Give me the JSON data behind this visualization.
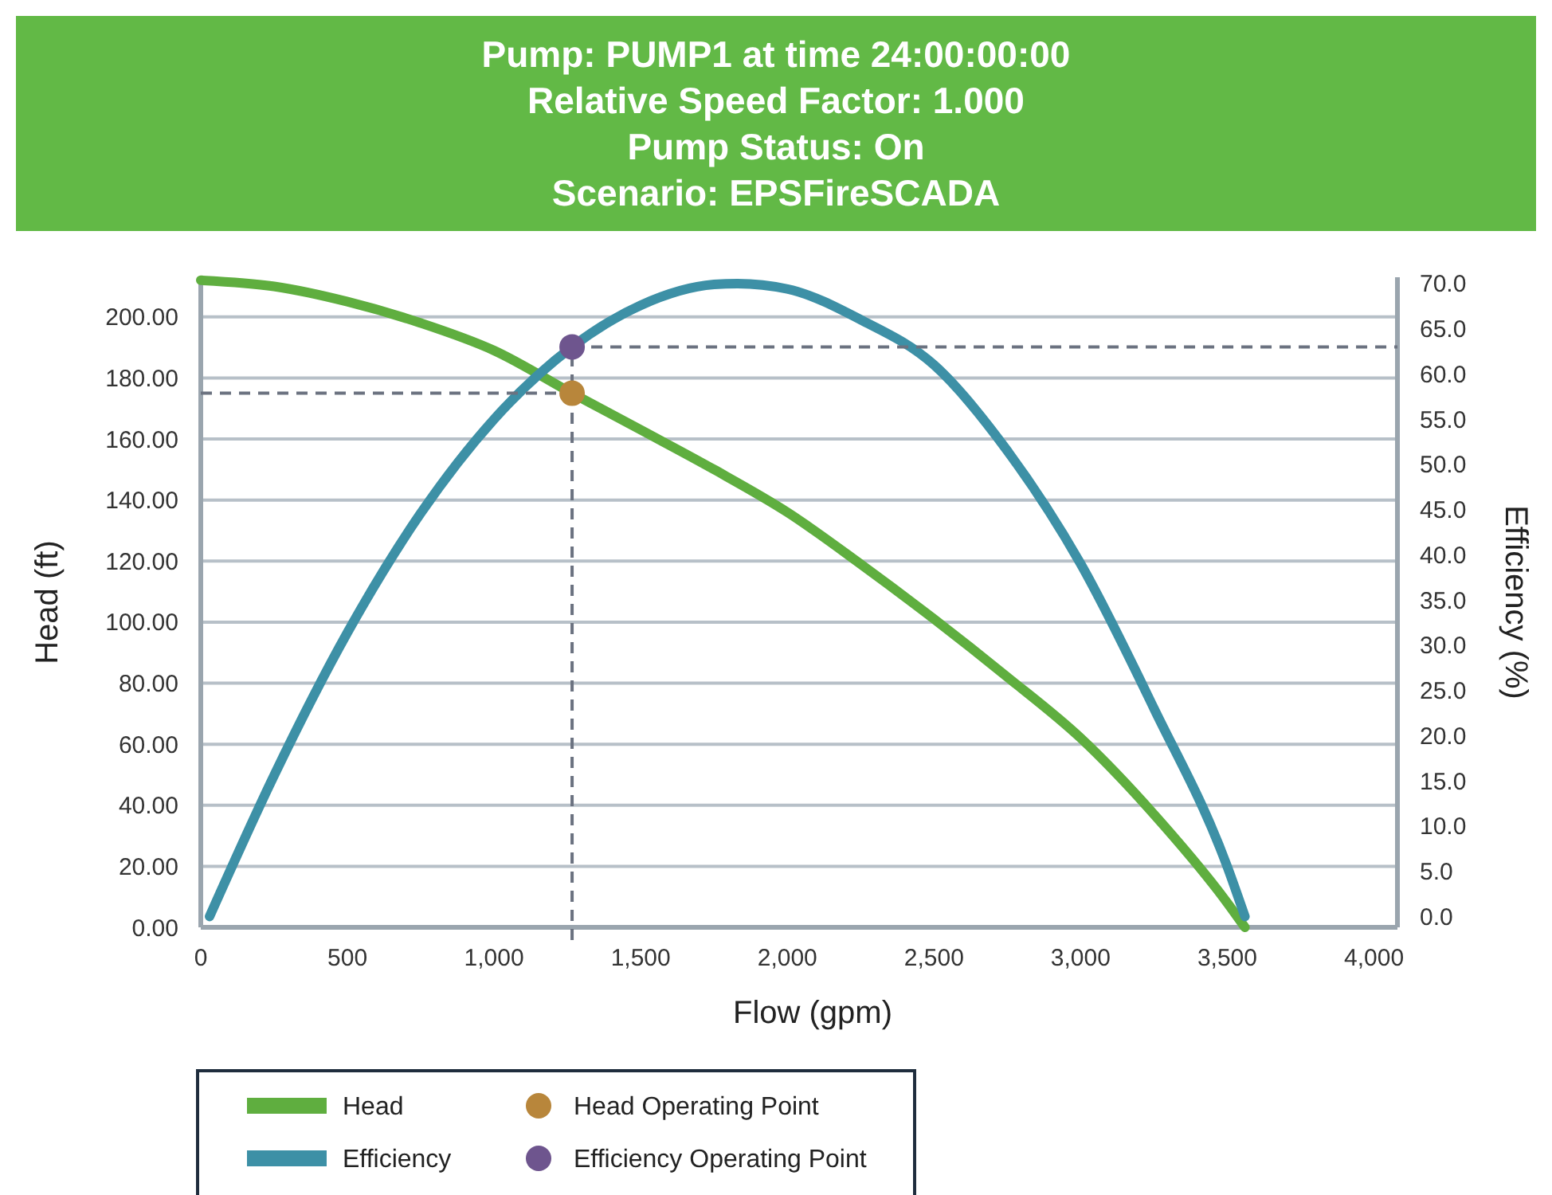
{
  "chart_data": {
    "type": "line",
    "title": "Pump: PUMP1 at time 24:00:00:00\nRelative Speed Factor: 1.000\nPump Status: On\nScenario: EPSFireSCADA",
    "xlabel": "Flow (gpm)",
    "ylabel": "Head (ft)",
    "y2label": "Efficiency (%)",
    "xlim": [
      0,
      4080
    ],
    "xticks": [
      0,
      500,
      {
        "value": 1000,
        "label": "1,000"
      },
      {
        "value": 1500,
        "label": "1,500"
      },
      {
        "value": 2000,
        "label": "2,000"
      },
      {
        "value": 2500,
        "label": "2,500"
      },
      {
        "value": 3000,
        "label": "3,000"
      },
      {
        "value": 3500,
        "label": "3,500"
      },
      {
        "value": 4000,
        "label": "4,000"
      }
    ],
    "ylim": [
      0,
      213
    ],
    "yticks": [
      {
        "value": 0,
        "label": "0.00"
      },
      {
        "value": 20,
        "label": "20.00"
      },
      {
        "value": 40,
        "label": "40.00"
      },
      {
        "value": 60,
        "label": "60.00"
      },
      {
        "value": 80,
        "label": "80.00"
      },
      {
        "value": 100,
        "label": "100.00"
      },
      {
        "value": 120,
        "label": "120.00"
      },
      {
        "value": 140,
        "label": "140.00"
      },
      {
        "value": 160,
        "label": "160.00"
      },
      {
        "value": 180,
        "label": "180.00"
      },
      {
        "value": 200,
        "label": "200.00"
      }
    ],
    "y2lim": [
      -1.2,
      70.7
    ],
    "y2ticks": [
      {
        "value": 0,
        "label": "0.0"
      },
      {
        "value": 5,
        "label": "5.0"
      },
      {
        "value": 10,
        "label": "10.0"
      },
      {
        "value": 15,
        "label": "15.0"
      },
      {
        "value": 20,
        "label": "20.0"
      },
      {
        "value": 25,
        "label": "25.0"
      },
      {
        "value": 30,
        "label": "30.0"
      },
      {
        "value": 35,
        "label": "35.0"
      },
      {
        "value": 40,
        "label": "40.0"
      },
      {
        "value": 45,
        "label": "45.0"
      },
      {
        "value": 50,
        "label": "50.0"
      },
      {
        "value": 55,
        "label": "55.0"
      },
      {
        "value": 60,
        "label": "60.0"
      },
      {
        "value": 65,
        "label": "65.0"
      },
      {
        "value": 70,
        "label": "70.0"
      }
    ],
    "grid": "y",
    "legend": "bottom",
    "line_style": "solid",
    "series": [
      {
        "name": "Head",
        "color": "#5fae3f",
        "x": [
          0,
          250,
          500,
          750,
          1000,
          1266,
          1500,
          1750,
          2000,
          2250,
          2500,
          2750,
          3000,
          3250,
          3500,
          3560
        ],
        "values": [
          212,
          210,
          205,
          198,
          189,
          175,
          163,
          150,
          136,
          119,
          101,
          82,
          62,
          37,
          8,
          0
        ]
      },
      {
        "name": "Efficiency",
        "color": "#3d90a6",
        "axis": "y2",
        "x": [
          30,
          250,
          500,
          750,
          1000,
          1266,
          1500,
          1750,
          1830,
          2000,
          2250,
          2500,
          2750,
          3000,
          3250,
          3500,
          3560
        ],
        "values": [
          0,
          15.6,
          31.4,
          44.6,
          55,
          63,
          67.6,
          69.9,
          70,
          69.4,
          66,
          61,
          51.5,
          39,
          23,
          5.5,
          0
        ]
      },
      {
        "name": "Head Operating Point",
        "type": "scatter",
        "marker": "circle",
        "color": "#b8863b",
        "x": [
          1266
        ],
        "values": [
          175
        ]
      },
      {
        "name": "Efficiency Operating Point",
        "type": "scatter",
        "marker": "circle",
        "color": "#6e558e",
        "axis": "y2",
        "x": [
          1266
        ],
        "values": [
          63
        ]
      }
    ],
    "ref_lines": [
      {
        "axis": "x",
        "value": 1266,
        "color": "#6b7280",
        "line_style": "dashed"
      },
      {
        "axis": "y",
        "value": 175,
        "color": "#6b7280",
        "line_style": "dashed"
      },
      {
        "axis": "y2",
        "value": 63,
        "color": "#6b7280",
        "line_style": "dashed"
      }
    ]
  }
}
